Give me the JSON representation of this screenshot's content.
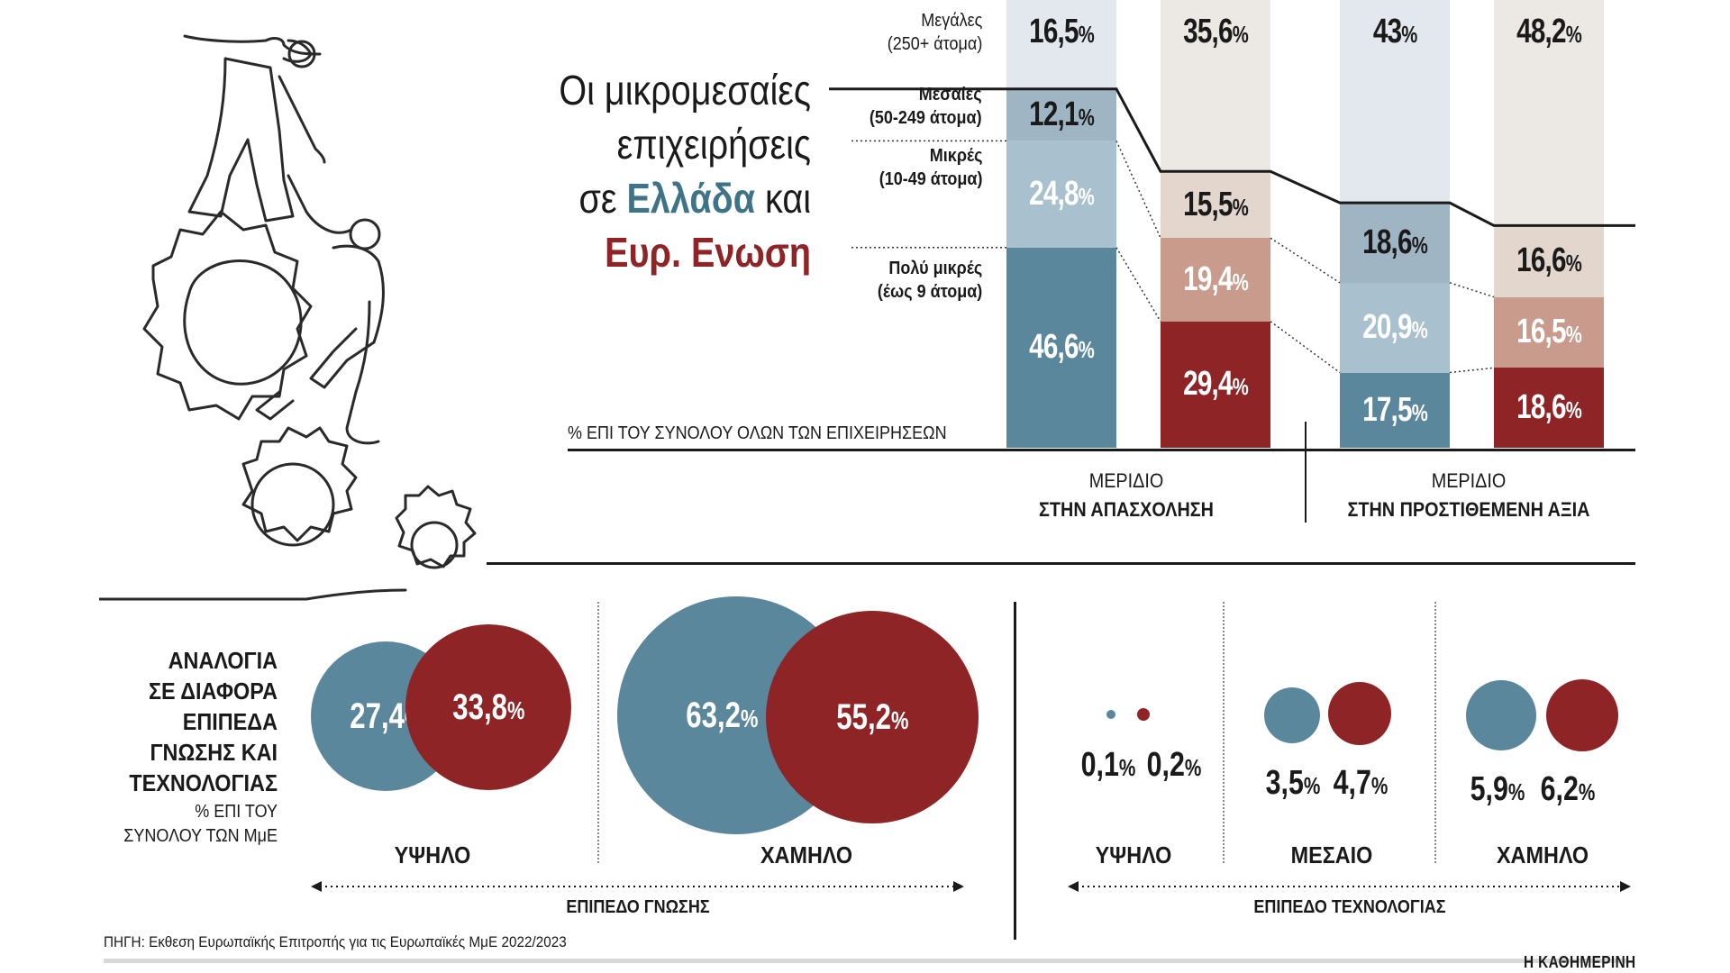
{
  "title": {
    "line1": "Οι μικρομεσαίες",
    "line2": "επιχειρήσεις",
    "line3_pre": "σε",
    "greece": "Ελλάδα",
    "line3_post": "και",
    "eu": "Ευρ. Ενωση"
  },
  "categories": [
    {
      "name": "Μεγάλες",
      "sub": "(250+ άτομα)",
      "bold": false
    },
    {
      "name": "Μεσαίες",
      "sub": "(50-249 άτομα)",
      "bold": true
    },
    {
      "name": "Μικρές",
      "sub": "(10-49 άτομα)",
      "bold": true
    },
    {
      "name": "Πολύ μικρές",
      "sub": "(έως 9 άτομα)",
      "bold": true
    }
  ],
  "axis_note": "% ΕΠΙ ΤΟΥ ΣΥΝΟΛΟΥ ΟΛΩΝ ΤΩΝ ΕΠΙΧΕΙΡΗΣΕΩΝ",
  "groups": [
    {
      "line1": "ΜΕΡΙΔΙΟ",
      "line2": "ΣΤΗΝ ΑΠΑΣΧΟΛΗΣΗ"
    },
    {
      "line1": "ΜΕΡΙΔΙΟ",
      "line2": "ΣΤΗΝ ΠΡΟΣΤΙΘΕΜΕΝΗ ΑΞΙΑ"
    }
  ],
  "chart_data": [
    {
      "type": "bar",
      "stacked": true,
      "unit": "%",
      "categories": [
        "Πολύ μικρές",
        "Μικρές",
        "Μεσαίες",
        "Μεγάλες"
      ],
      "groups": [
        "ΜΕΡΙΔΙΟ ΣΤΗΝ ΑΠΑΣΧΟΛΗΣΗ",
        "ΜΕΡΙΔΙΟ ΣΤΗΝ ΠΡΟΣΤΙΘΕΜΕΝΗ ΑΞΙΑ"
      ],
      "bars": [
        {
          "country": "Ελλάδα",
          "group": "ΜΕΡΙΔΙΟ ΣΤΗΝ ΑΠΑΣΧΟΛΗΣΗ",
          "values": [
            46.6,
            24.8,
            12.1,
            16.5
          ],
          "labels": [
            "46,6",
            "24,8",
            "12,1",
            "16,5"
          ]
        },
        {
          "country": "Ευρ. Ενωση",
          "group": "ΜΕΡΙΔΙΟ ΣΤΗΝ ΑΠΑΣΧΟΛΗΣΗ",
          "values": [
            29.4,
            19.4,
            15.5,
            35.6
          ],
          "labels": [
            "29,4",
            "19,4",
            "15,5",
            "35,6"
          ]
        },
        {
          "country": "Ελλάδα",
          "group": "ΜΕΡΙΔΙΟ ΣΤΗΝ ΠΡΟΣΤΙΘΕΜΕΝΗ ΑΞΙΑ",
          "values": [
            17.5,
            20.9,
            18.6,
            43
          ],
          "labels": [
            "17,5",
            "20,9",
            "18,6",
            "43"
          ]
        },
        {
          "country": "Ευρ. Ενωση",
          "group": "ΜΕΡΙΔΙΟ ΣΤΗΝ ΠΡΟΣΤΙΘΕΜΕΝΗ ΑΞΙΑ",
          "values": [
            18.6,
            16.5,
            16.6,
            48.2
          ],
          "labels": [
            "18,6",
            "16,5",
            "16,6",
            "48,2"
          ]
        }
      ]
    },
    {
      "type": "bubble",
      "unit": "%",
      "title": "ΑΝΑΛΟΓΙΑ ΣΕ ΔΙΑΦΟΡΑ ΕΠΙΠΕΔΑ ΓΝΩΣΗΣ ΚΑΙ ΤΕΧΝΟΛΟΓΙΑΣ",
      "subtitle": "% ΕΠΙ ΤΟΥ ΣΥΝΟΛΟΥ ΤΩΝ ΜμΕ",
      "panels": [
        {
          "axis": "ΕΠΙΠΕΔΟ ΓΝΩΣΗΣ",
          "levels": [
            {
              "level": "ΥΨΗΛΟ",
              "greece": 27.4,
              "eu": 33.8,
              "greece_label": "27,4",
              "eu_label": "33,8"
            },
            {
              "level": "ΧΑΜΗΛΟ",
              "greece": 63.2,
              "eu": 55.2,
              "greece_label": "63,2",
              "eu_label": "55,2"
            }
          ]
        },
        {
          "axis": "ΕΠΙΠΕΔΟ ΤΕΧΝΟΛΟΓΙΑΣ",
          "levels": [
            {
              "level": "ΥΨΗΛΟ",
              "greece": 0.1,
              "eu": 0.2,
              "greece_label": "0,1",
              "eu_label": "0,2"
            },
            {
              "level": "ΜΕΣΑΙΟ",
              "greece": 3.5,
              "eu": 4.7,
              "greece_label": "3,5",
              "eu_label": "4,7"
            },
            {
              "level": "ΧΑΜΗΛΟ",
              "greece": 5.9,
              "eu": 6.2,
              "greece_label": "5,9",
              "eu_label": "6,2"
            }
          ]
        }
      ]
    }
  ],
  "colors": {
    "greece": [
      "#5a879b",
      "#a9c0ce",
      "#9fb5c4",
      "#e3e8ee"
    ],
    "eu": [
      "#8e2426",
      "#c99b8d",
      "#e2d6cd",
      "#ece8e4"
    ],
    "greece_bubble": "#5a879b",
    "eu_bubble": "#8e2426"
  },
  "percent_sign": "%",
  "bubble_heading": {
    "l1": "ΑΝΑΛΟΓΙΑ",
    "l2": "ΣΕ ΔΙΑΦΟΡΑ",
    "l3": "ΕΠΙΠΕΔΑ",
    "l4": "ΓΝΩΣΗΣ ΚΑΙ",
    "l5": "ΤΕΧΝΟΛΟΓΙΑΣ"
  },
  "bubble_sub": {
    "l1": "% ΕΠΙ ΤΟΥ",
    "l2": "ΣΥΝΟΛΟΥ ΤΩΝ ΜμΕ"
  },
  "source": "ΠΗΓΗ: Εκθεση Ευρωπαϊκής Επιτροπής για τις Ευρωπαϊκές ΜμΕ 2022/2023",
  "brand": "Η ΚΑΘΗΜΕΡΙΝΗ"
}
